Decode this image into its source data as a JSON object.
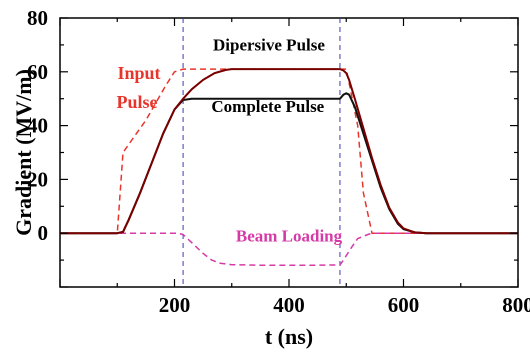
{
  "chart_data": {
    "type": "line",
    "title": "",
    "xlabel": "t (ns)",
    "ylabel": "Gradient (MV/m)",
    "xlim": [
      0,
      800
    ],
    "ylim": [
      -20,
      80
    ],
    "xticks": [
      200,
      400,
      600,
      800
    ],
    "yticks": [
      0,
      20,
      40,
      60,
      80
    ],
    "grid": false,
    "colors": {
      "input": "#e8352b",
      "beam": "#d63aa8",
      "complete": "#111111",
      "dispersive": "#7a0000",
      "marker": "#3c3cb4"
    },
    "series": [
      {
        "name": "Input Pulse",
        "style": "dashed",
        "x": [
          0,
          100,
          110,
          150,
          185,
          200,
          215,
          300,
          350,
          400,
          450,
          490,
          500,
          520,
          530,
          545,
          800
        ],
        "y": [
          0,
          0,
          30,
          42,
          55,
          60,
          61,
          61,
          61,
          61,
          61,
          61,
          61,
          40,
          15,
          0,
          0
        ]
      },
      {
        "name": "Beam Loading",
        "style": "dashed",
        "x": [
          0,
          100,
          205,
          215,
          230,
          250,
          265,
          280,
          300,
          350,
          400,
          450,
          489,
          495,
          510,
          520,
          540,
          550,
          600,
          800
        ],
        "y": [
          0,
          0,
          0,
          -0.5,
          -3.5,
          -7.5,
          -10,
          -11.2,
          -11.7,
          -11.9,
          -11.9,
          -11.9,
          -11.8,
          -10,
          -5,
          -2,
          -0.3,
          0,
          0,
          0
        ]
      },
      {
        "name": "Complete Pulse",
        "style": "solid",
        "x": [
          0,
          100,
          110,
          120,
          140,
          160,
          180,
          200,
          215,
          230,
          250,
          300,
          400,
          480,
          489,
          495,
          500,
          505,
          515,
          530,
          545,
          560,
          575,
          590,
          600,
          620,
          640,
          660,
          800
        ],
        "y": [
          0,
          0,
          0.5,
          5,
          15,
          26,
          37,
          46,
          49.5,
          50,
          50,
          50,
          50,
          50,
          50,
          51.5,
          52,
          51.5,
          47,
          37,
          27,
          17,
          9,
          3.5,
          1.5,
          0.3,
          0,
          0,
          0
        ]
      },
      {
        "name": "Dipersive Pulse",
        "style": "solid",
        "x": [
          0,
          100,
          110,
          120,
          140,
          160,
          180,
          200,
          215,
          230,
          250,
          270,
          290,
          300,
          400,
          480,
          489,
          495,
          500,
          505,
          515,
          530,
          545,
          560,
          575,
          590,
          600,
          620,
          640,
          660,
          800
        ],
        "y": [
          0,
          0,
          0.5,
          5,
          15,
          26,
          37,
          46,
          50,
          53.5,
          57,
          59.5,
          60.7,
          61,
          61,
          61,
          61,
          60.5,
          59.5,
          57,
          50,
          39,
          28,
          18,
          9.5,
          4,
          1.8,
          0.3,
          0,
          0,
          0
        ]
      }
    ],
    "vlines": [
      215,
      489
    ],
    "annotations": [
      {
        "text": "Dipersive Pulse",
        "x": 365,
        "y": 68
      },
      {
        "text": "Complete Pulse",
        "x": 363,
        "y": 45
      },
      {
        "text": "Beam Loading",
        "x": 400,
        "y": -3
      }
    ],
    "input_label": [
      "Input",
      "Pulse"
    ]
  }
}
